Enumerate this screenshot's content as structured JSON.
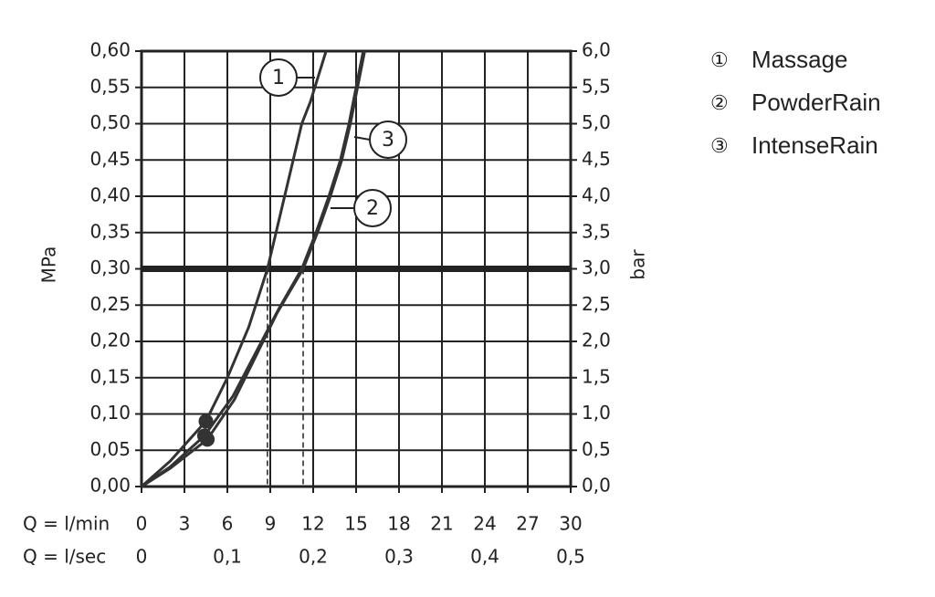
{
  "chart_data": {
    "type": "line",
    "y_label": "MPa",
    "y2_label": "bar",
    "x_label": "Q = l/min",
    "x2_label": "Q = l/sec",
    "xlim": [
      0,
      30
    ],
    "xticks": [
      0,
      3,
      6,
      9,
      12,
      15,
      18,
      21,
      24,
      27,
      30
    ],
    "x2lim": [
      0,
      0.5
    ],
    "x2ticks": [
      0,
      {
        "value": 0.1,
        "label": "0,1"
      },
      {
        "value": 0.2,
        "label": "0,2"
      },
      {
        "value": 0.3,
        "label": "0,3"
      },
      {
        "value": 0.4,
        "label": "0,4"
      },
      {
        "value": 0.5,
        "label": "0,5"
      }
    ],
    "ylim": [
      0,
      0.6
    ],
    "yticks": [
      {
        "value": 0,
        "label": "0,00"
      },
      {
        "value": 0.05,
        "label": "0,05"
      },
      {
        "value": 0.1,
        "label": "0,10"
      },
      {
        "value": 0.15,
        "label": "0,15"
      },
      {
        "value": 0.2,
        "label": "0,20"
      },
      {
        "value": 0.25,
        "label": "0,25"
      },
      {
        "value": 0.3,
        "label": "0,30"
      },
      {
        "value": 0.35,
        "label": "0,35"
      },
      {
        "value": 0.4,
        "label": "0,40"
      },
      {
        "value": 0.45,
        "label": "0,45"
      },
      {
        "value": 0.5,
        "label": "0,50"
      },
      {
        "value": 0.55,
        "label": "0,55"
      },
      {
        "value": 0.6,
        "label": "0,60"
      }
    ],
    "y2lim": [
      0,
      6
    ],
    "y2ticks": [
      {
        "value": 0,
        "label": "0,0"
      },
      {
        "value": 0.5,
        "label": "0,5"
      },
      {
        "value": 1,
        "label": "1,0"
      },
      {
        "value": 1.5,
        "label": "1,5"
      },
      {
        "value": 2,
        "label": "2,0"
      },
      {
        "value": 2.5,
        "label": "2,5"
      },
      {
        "value": 3,
        "label": "3,0"
      },
      {
        "value": 3.5,
        "label": "3,5"
      },
      {
        "value": 4,
        "label": "4,0"
      },
      {
        "value": 4.5,
        "label": "4,5"
      },
      {
        "value": 5,
        "label": "5,0"
      },
      {
        "value": 5.5,
        "label": "5,5"
      },
      {
        "value": 6,
        "label": "6,0"
      }
    ],
    "grid": true,
    "reference_y": 0.3,
    "reference_x": [
      8.8,
      11.3
    ],
    "series": [
      {
        "name": "Massage",
        "marker": "①",
        "label": "1",
        "color": "#333333",
        "x": [
          0,
          2,
          4.5,
          6,
          7.5,
          8.8,
          10,
          10.6,
          11.2,
          11.8,
          12.9
        ],
        "values": [
          0,
          0.035,
          0.09,
          0.15,
          0.22,
          0.3,
          0.4,
          0.45,
          0.5,
          0.53,
          0.6
        ]
      },
      {
        "name": "PowderRain",
        "marker": "②",
        "label": "2",
        "color": "#333333",
        "x": [
          0,
          2,
          4.6,
          6.5,
          8,
          9.5,
          11.3,
          12.3,
          13.2,
          14,
          14.6,
          15.6
        ],
        "values": [
          0,
          0.025,
          0.065,
          0.12,
          0.18,
          0.24,
          0.3,
          0.35,
          0.4,
          0.45,
          0.5,
          0.6
        ]
      },
      {
        "name": "IntenseRain",
        "marker": "③",
        "label": "3",
        "color": "#333333",
        "x": [
          0,
          2,
          4.4,
          6.4,
          8,
          9.6,
          11.2,
          12.2,
          13.1,
          13.9,
          14.5,
          15.5
        ],
        "values": [
          0,
          0.027,
          0.07,
          0.125,
          0.185,
          0.245,
          0.3,
          0.35,
          0.4,
          0.45,
          0.5,
          0.6
        ]
      }
    ]
  }
}
